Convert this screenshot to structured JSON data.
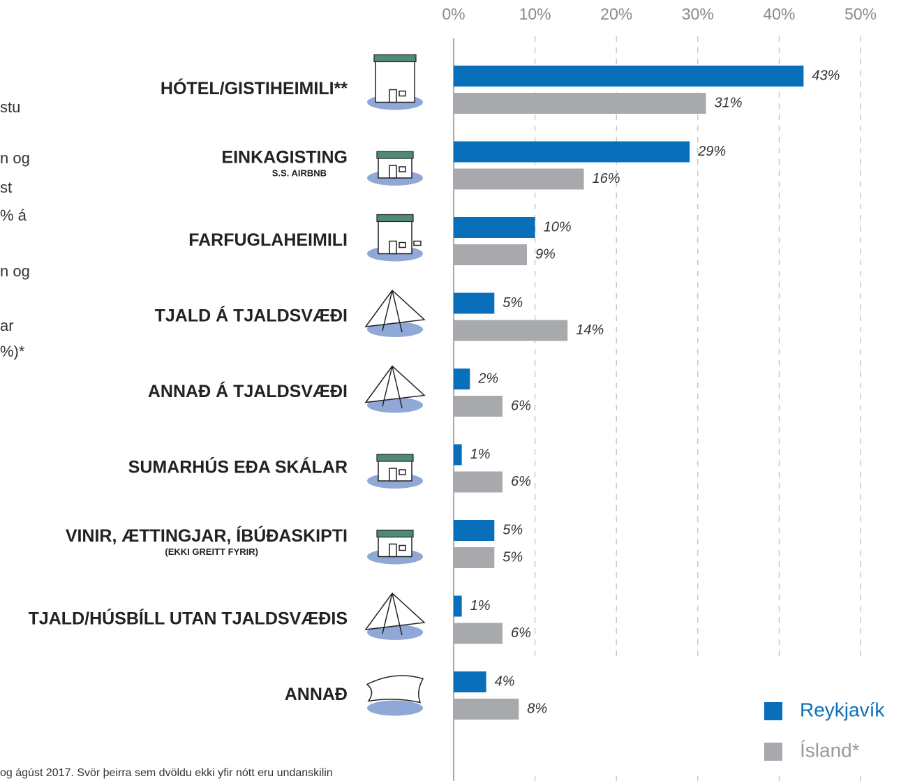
{
  "chart_data": {
    "type": "bar",
    "orientation": "horizontal",
    "categories": [
      "HÓTEL/GISTIHEIMILI**",
      "EINKAGISTING",
      "FARFUGLAHEIMILI",
      "TJALD Á TJALDSVÆÐI",
      "ANNAÐ Á TJALDSVÆÐI",
      "SUMARHÚS EÐA SKÁLAR",
      "VINIR, ÆTTINGJAR, ÍBÚÐASKIPTI",
      "TJALD/HÚSBÍLL UTAN TJALDSVÆÐIS",
      "ANNAÐ"
    ],
    "category_notes": [
      null,
      "S.S. AIRBNB",
      null,
      null,
      null,
      null,
      "(EKKI GREITT FYRIR)",
      null,
      null
    ],
    "series": [
      {
        "name": "Reykjavík",
        "color": "#0a6fba",
        "values": [
          43,
          29,
          10,
          5,
          2,
          1,
          5,
          1,
          4
        ],
        "value_labels": [
          "43%",
          "29%",
          "10%",
          "5%",
          "2%",
          "1%",
          "5%",
          "1%",
          "4%"
        ]
      },
      {
        "name": "Ísland*",
        "color": "#a7a9ac",
        "values": [
          31,
          16,
          9,
          14,
          6,
          6,
          5,
          6,
          8
        ],
        "value_labels": [
          "31%",
          "16%",
          "9%",
          "14%",
          "6%",
          "6%",
          "5%",
          "6%",
          "8%"
        ]
      }
    ],
    "xlim": [
      0,
      50
    ],
    "xticks": [
      {
        "value": 0,
        "label": "0%"
      },
      {
        "value": 10,
        "label": "10%"
      },
      {
        "value": 20,
        "label": "20%"
      },
      {
        "value": 30,
        "label": "30%"
      },
      {
        "value": 40,
        "label": "40%"
      },
      {
        "value": 50,
        "label": "50%"
      }
    ],
    "grid": true,
    "legend": "lower right",
    "side_text": [
      "stu",
      "n og",
      "st",
      "% á",
      "n og",
      "ar",
      "%)*"
    ],
    "footnote": "og ágúst 2017. Svör þeirra sem dvöldu ekki yfir nótt eru undanskilin"
  }
}
